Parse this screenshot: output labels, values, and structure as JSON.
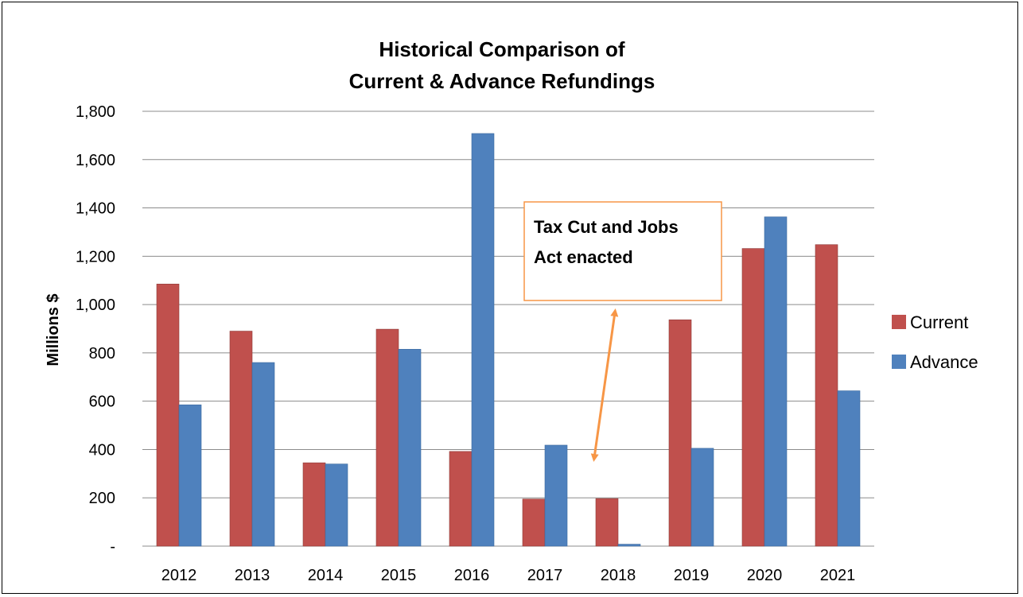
{
  "chart_data": {
    "type": "bar",
    "title": [
      "Historical Comparison of",
      "Current & Advance Refundings"
    ],
    "xlabel": "",
    "ylabel": "Millions $",
    "ylim": [
      0,
      1800
    ],
    "yticks": [
      0,
      200,
      400,
      600,
      800,
      1000,
      1200,
      1400,
      1600,
      1800
    ],
    "ytick_labels": [
      "-",
      "200",
      "400",
      "600",
      "800",
      "1,000",
      "1,200",
      "1,400",
      "1,600",
      "1,800"
    ],
    "grid": true,
    "legend_position": "right",
    "categories": [
      "2012",
      "2013",
      "2014",
      "2015",
      "2016",
      "2017",
      "2018",
      "2019",
      "2020",
      "2021"
    ],
    "series": [
      {
        "name": "Current",
        "color": "#c0504d",
        "values": [
          1085,
          890,
          345,
          898,
          392,
          195,
          197,
          937,
          1232,
          1248
        ]
      },
      {
        "name": "Advance",
        "color": "#4f81bd",
        "values": [
          585,
          760,
          340,
          815,
          1708,
          418,
          8,
          405,
          1363,
          643
        ]
      }
    ],
    "annotation": {
      "lines": [
        "Tax Cut and Jobs",
        "Act enacted"
      ],
      "border_color": "#f79646",
      "arrow_color": "#f79646"
    }
  }
}
